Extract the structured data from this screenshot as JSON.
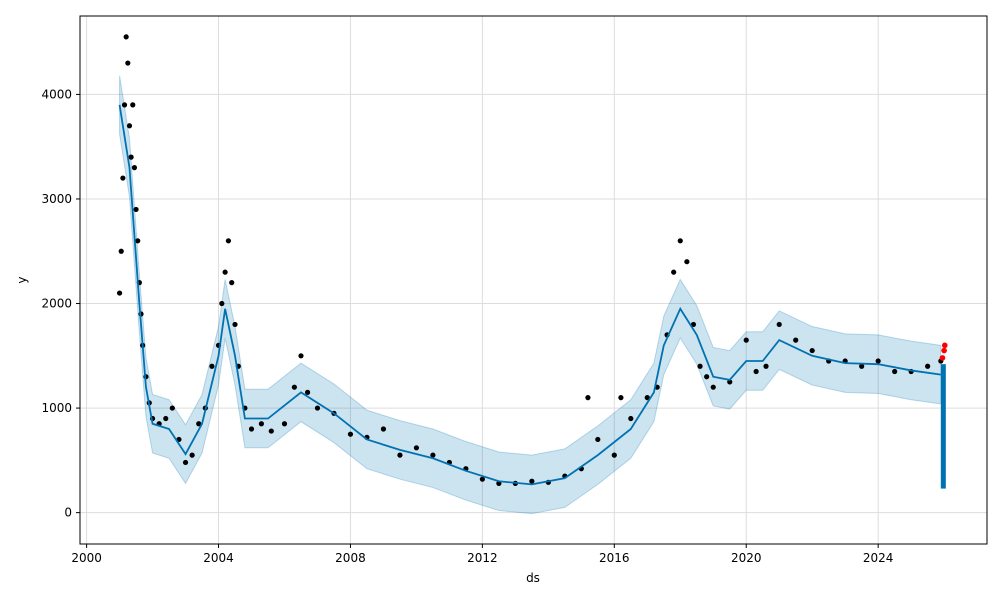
{
  "chart_data": {
    "type": "scatter",
    "title": "",
    "xlabel": "ds",
    "ylabel": "y",
    "xlim": [
      1999.8,
      2027.3
    ],
    "ylim": [
      -300,
      4750
    ],
    "x_ticks": [
      2000,
      2004,
      2008,
      2012,
      2016,
      2020,
      2024
    ],
    "y_ticks": [
      0,
      1000,
      2000,
      3000,
      4000
    ],
    "grid": true,
    "colors": {
      "observed": "#000000",
      "forecast_line": "#0072B2",
      "uncertainty_band": "#0072B2",
      "highlight": "#ff0000"
    },
    "series": [
      {
        "kind": "observed_points",
        "points": [
          [
            2001.0,
            2100
          ],
          [
            2001.05,
            2500
          ],
          [
            2001.1,
            3200
          ],
          [
            2001.15,
            3900
          ],
          [
            2001.2,
            4550
          ],
          [
            2001.25,
            4300
          ],
          [
            2001.3,
            3700
          ],
          [
            2001.35,
            3400
          ],
          [
            2001.4,
            3900
          ],
          [
            2001.45,
            3300
          ],
          [
            2001.5,
            2900
          ],
          [
            2001.55,
            2600
          ],
          [
            2001.6,
            2200
          ],
          [
            2001.65,
            1900
          ],
          [
            2001.7,
            1600
          ],
          [
            2001.8,
            1300
          ],
          [
            2001.9,
            1050
          ],
          [
            2002.0,
            900
          ],
          [
            2002.2,
            850
          ],
          [
            2002.4,
            900
          ],
          [
            2002.6,
            1000
          ],
          [
            2002.8,
            700
          ],
          [
            2003.0,
            480
          ],
          [
            2003.2,
            550
          ],
          [
            2003.4,
            850
          ],
          [
            2003.6,
            1000
          ],
          [
            2003.8,
            1400
          ],
          [
            2004.0,
            1600
          ],
          [
            2004.1,
            2000
          ],
          [
            2004.2,
            2300
          ],
          [
            2004.3,
            2600
          ],
          [
            2004.4,
            2200
          ],
          [
            2004.5,
            1800
          ],
          [
            2004.6,
            1400
          ],
          [
            2004.8,
            1000
          ],
          [
            2005.0,
            800
          ],
          [
            2005.3,
            850
          ],
          [
            2005.6,
            780
          ],
          [
            2006.0,
            850
          ],
          [
            2006.3,
            1200
          ],
          [
            2006.5,
            1500
          ],
          [
            2006.7,
            1150
          ],
          [
            2007.0,
            1000
          ],
          [
            2007.5,
            950
          ],
          [
            2008.0,
            750
          ],
          [
            2008.5,
            720
          ],
          [
            2009.0,
            800
          ],
          [
            2009.5,
            550
          ],
          [
            2010.0,
            620
          ],
          [
            2010.5,
            550
          ],
          [
            2011.0,
            480
          ],
          [
            2011.5,
            420
          ],
          [
            2012.0,
            320
          ],
          [
            2012.5,
            280
          ],
          [
            2013.0,
            280
          ],
          [
            2013.5,
            300
          ],
          [
            2014.0,
            290
          ],
          [
            2014.5,
            350
          ],
          [
            2015.0,
            420
          ],
          [
            2015.2,
            1100
          ],
          [
            2015.5,
            700
          ],
          [
            2016.0,
            550
          ],
          [
            2016.2,
            1100
          ],
          [
            2016.5,
            900
          ],
          [
            2017.0,
            1100
          ],
          [
            2017.3,
            1200
          ],
          [
            2017.6,
            1700
          ],
          [
            2017.8,
            2300
          ],
          [
            2018.0,
            2600
          ],
          [
            2018.2,
            2400
          ],
          [
            2018.4,
            1800
          ],
          [
            2018.6,
            1400
          ],
          [
            2018.8,
            1300
          ],
          [
            2019.0,
            1200
          ],
          [
            2019.5,
            1250
          ],
          [
            2020.0,
            1650
          ],
          [
            2020.3,
            1350
          ],
          [
            2020.6,
            1400
          ],
          [
            2021.0,
            1800
          ],
          [
            2021.5,
            1650
          ],
          [
            2022.0,
            1550
          ],
          [
            2022.5,
            1450
          ],
          [
            2023.0,
            1450
          ],
          [
            2023.5,
            1400
          ],
          [
            2024.0,
            1450
          ],
          [
            2024.5,
            1350
          ],
          [
            2025.0,
            1350
          ],
          [
            2025.5,
            1400
          ],
          [
            2025.9,
            1450
          ]
        ]
      },
      {
        "kind": "forecast_line",
        "points": [
          [
            2001.0,
            3900
          ],
          [
            2001.3,
            3300
          ],
          [
            2001.6,
            2000
          ],
          [
            2001.8,
            1200
          ],
          [
            2002.0,
            850
          ],
          [
            2002.5,
            800
          ],
          [
            2003.0,
            560
          ],
          [
            2003.5,
            850
          ],
          [
            2004.0,
            1500
          ],
          [
            2004.2,
            1950
          ],
          [
            2004.5,
            1500
          ],
          [
            2004.8,
            900
          ],
          [
            2005.5,
            900
          ],
          [
            2006.5,
            1150
          ],
          [
            2007.5,
            950
          ],
          [
            2008.5,
            700
          ],
          [
            2009.5,
            600
          ],
          [
            2010.5,
            520
          ],
          [
            2011.5,
            400
          ],
          [
            2012.5,
            300
          ],
          [
            2013.5,
            270
          ],
          [
            2014.5,
            330
          ],
          [
            2015.5,
            550
          ],
          [
            2016.5,
            800
          ],
          [
            2017.2,
            1150
          ],
          [
            2017.5,
            1600
          ],
          [
            2018.0,
            1950
          ],
          [
            2018.5,
            1700
          ],
          [
            2019.0,
            1300
          ],
          [
            2019.5,
            1270
          ],
          [
            2020.0,
            1450
          ],
          [
            2020.5,
            1450
          ],
          [
            2021.0,
            1650
          ],
          [
            2022.0,
            1500
          ],
          [
            2023.0,
            1430
          ],
          [
            2024.0,
            1420
          ],
          [
            2025.0,
            1360
          ],
          [
            2025.9,
            1320
          ]
        ]
      },
      {
        "kind": "uncertainty_band",
        "half_width": 280
      },
      {
        "kind": "forecast_segment",
        "x": [
          2025.9,
          2026.0
        ],
        "y_range": [
          230,
          1420
        ]
      },
      {
        "kind": "highlight_points",
        "points": [
          [
            2025.95,
            1480
          ],
          [
            2026.0,
            1550
          ],
          [
            2026.02,
            1600
          ]
        ]
      }
    ]
  }
}
